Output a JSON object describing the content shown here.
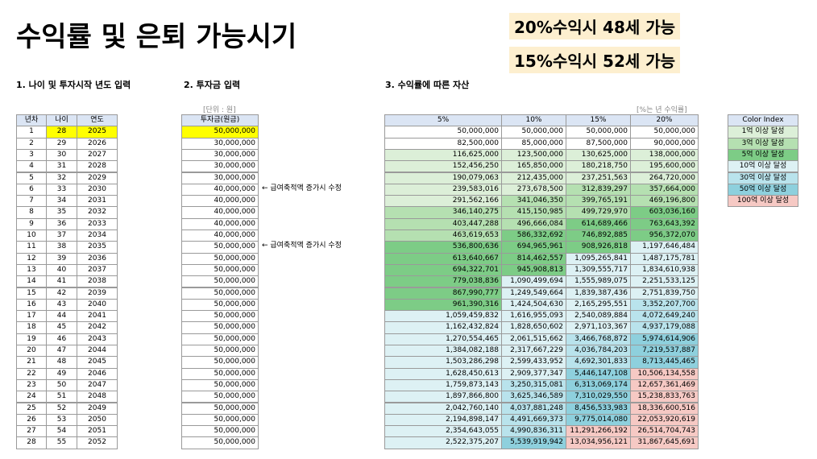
{
  "header": {
    "title": "수익률 및 은퇴 가능시기",
    "badges": [
      "20%수익시 48세 가능",
      "15%수익시 52세 가능"
    ]
  },
  "input": {
    "heading": "1. 나이 및 투자시작 년도 입력",
    "columns": [
      "년차",
      "나이",
      "연도"
    ],
    "rows": [
      [
        1,
        28,
        2025
      ],
      [
        2,
        29,
        2026
      ],
      [
        3,
        30,
        2027
      ],
      [
        4,
        31,
        2028
      ],
      [
        5,
        32,
        2029
      ],
      [
        6,
        33,
        2030
      ],
      [
        7,
        34,
        2031
      ],
      [
        8,
        35,
        2032
      ],
      [
        9,
        36,
        2033
      ],
      [
        10,
        37,
        2034
      ],
      [
        11,
        38,
        2035
      ],
      [
        12,
        39,
        2036
      ],
      [
        13,
        40,
        2037
      ],
      [
        14,
        41,
        2038
      ],
      [
        15,
        42,
        2039
      ],
      [
        16,
        43,
        2040
      ],
      [
        17,
        44,
        2041
      ],
      [
        18,
        45,
        2042
      ],
      [
        19,
        46,
        2043
      ],
      [
        20,
        47,
        2044
      ],
      [
        21,
        48,
        2045
      ],
      [
        22,
        49,
        2046
      ],
      [
        23,
        50,
        2047
      ],
      [
        24,
        51,
        2048
      ],
      [
        25,
        52,
        2049
      ],
      [
        26,
        53,
        2050
      ],
      [
        27,
        54,
        2051
      ],
      [
        28,
        55,
        2052
      ]
    ]
  },
  "investment": {
    "heading": "2. 투자금 입력",
    "unit": "[단위 : 원]",
    "column": "투자금(원금)",
    "rows": [
      {
        "amount": "50,000,000"
      },
      {
        "amount": "30,000,000"
      },
      {
        "amount": "30,000,000"
      },
      {
        "amount": "30,000,000"
      },
      {
        "amount": "30,000,000"
      },
      {
        "amount": "40,000,000",
        "note": "← 급여축적액 증가시 수정"
      },
      {
        "amount": "40,000,000"
      },
      {
        "amount": "40,000,000"
      },
      {
        "amount": "40,000,000"
      },
      {
        "amount": "40,000,000"
      },
      {
        "amount": "50,000,000",
        "note": "← 급여축적액 증가시 수정"
      },
      {
        "amount": "50,000,000"
      },
      {
        "amount": "50,000,000"
      },
      {
        "amount": "50,000,000"
      },
      {
        "amount": "50,000,000"
      },
      {
        "amount": "50,000,000"
      },
      {
        "amount": "50,000,000"
      },
      {
        "amount": "50,000,000"
      },
      {
        "amount": "50,000,000"
      },
      {
        "amount": "50,000,000"
      },
      {
        "amount": "50,000,000"
      },
      {
        "amount": "50,000,000"
      },
      {
        "amount": "50,000,000"
      },
      {
        "amount": "50,000,000"
      },
      {
        "amount": "50,000,000"
      },
      {
        "amount": "50,000,000"
      },
      {
        "amount": "50,000,000"
      },
      {
        "amount": "50,000,000"
      }
    ]
  },
  "assets": {
    "heading": "3. 수익률에 따른 자산",
    "unit": "[%는 년 수익률]",
    "columns": [
      "5%",
      "10%",
      "15%",
      "20%"
    ],
    "rows": [
      [
        "50,000,000",
        "50,000,000",
        "50,000,000",
        "50,000,000"
      ],
      [
        "82,500,000",
        "85,000,000",
        "87,500,000",
        "90,000,000"
      ],
      [
        "116,625,000",
        "123,500,000",
        "130,625,000",
        "138,000,000"
      ],
      [
        "152,456,250",
        "165,850,000",
        "180,218,750",
        "195,600,000"
      ],
      [
        "190,079,063",
        "212,435,000",
        "237,251,563",
        "264,720,000"
      ],
      [
        "239,583,016",
        "273,678,500",
        "312,839,297",
        "357,664,000"
      ],
      [
        "291,562,166",
        "341,046,350",
        "399,765,191",
        "469,196,800"
      ],
      [
        "346,140,275",
        "415,150,985",
        "499,729,970",
        "603,036,160"
      ],
      [
        "403,447,288",
        "496,666,084",
        "614,689,466",
        "763,643,392"
      ],
      [
        "463,619,653",
        "586,332,692",
        "746,892,885",
        "956,372,070"
      ],
      [
        "536,800,636",
        "694,965,961",
        "908,926,818",
        "1,197,646,484"
      ],
      [
        "613,640,667",
        "814,462,557",
        "1,095,265,841",
        "1,487,175,781"
      ],
      [
        "694,322,701",
        "945,908,813",
        "1,309,555,717",
        "1,834,610,938"
      ],
      [
        "779,038,836",
        "1,090,499,694",
        "1,555,989,075",
        "2,251,533,125"
      ],
      [
        "867,990,777",
        "1,249,549,664",
        "1,839,387,436",
        "2,751,839,750"
      ],
      [
        "961,390,316",
        "1,424,504,630",
        "2,165,295,551",
        "3,352,207,700"
      ],
      [
        "1,059,459,832",
        "1,616,955,093",
        "2,540,089,884",
        "4,072,649,240"
      ],
      [
        "1,162,432,824",
        "1,828,650,602",
        "2,971,103,367",
        "4,937,179,088"
      ],
      [
        "1,270,554,465",
        "2,061,515,662",
        "3,466,768,872",
        "5,974,614,906"
      ],
      [
        "1,384,082,188",
        "2,317,667,229",
        "4,036,784,203",
        "7,219,537,887"
      ],
      [
        "1,503,286,298",
        "2,599,433,952",
        "4,692,301,833",
        "8,713,445,465"
      ],
      [
        "1,628,450,613",
        "2,909,377,347",
        "5,446,147,108",
        "10,506,134,558"
      ],
      [
        "1,759,873,143",
        "3,250,315,081",
        "6,313,069,174",
        "12,657,361,469"
      ],
      [
        "1,897,866,800",
        "3,625,346,589",
        "7,310,029,550",
        "15,238,833,763"
      ],
      [
        "2,042,760,140",
        "4,037,881,248",
        "8,456,533,983",
        "18,336,600,516"
      ],
      [
        "2,194,898,147",
        "4,491,669,373",
        "9,775,014,080",
        "22,053,920,619"
      ],
      [
        "2,354,643,055",
        "4,990,836,311",
        "11,291,266,192",
        "26,514,704,743"
      ],
      [
        "2,522,375,207",
        "5,539,919,942",
        "13,034,956,121",
        "31,867,645,691"
      ]
    ]
  },
  "color_index": {
    "title": "Color Index",
    "items": [
      {
        "label": "1억 이상 달성",
        "color": "#dcefd8"
      },
      {
        "label": "3억 이상 달성",
        "color": "#b5e0b1"
      },
      {
        "label": "5억 이상 달성",
        "color": "#7dcc86"
      },
      {
        "label": "10억 이상 달성",
        "color": "#ddf1f4"
      },
      {
        "label": "30억 이상 달성",
        "color": "#b9e3ec"
      },
      {
        "label": "50억 이상 달성",
        "color": "#8ed0dd"
      },
      {
        "label": "100억 이상 달성",
        "color": "#f6c9c4"
      }
    ]
  }
}
